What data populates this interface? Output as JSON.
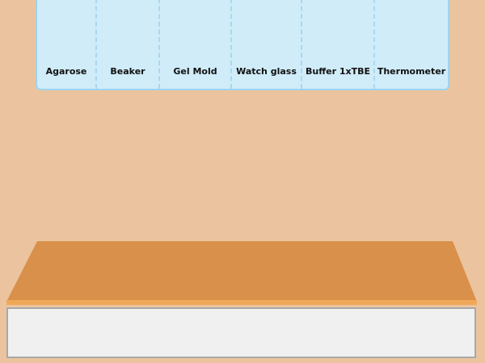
{
  "equipment_shelf": {
    "items": [
      {
        "label": "Agarose"
      },
      {
        "label": "Beaker"
      },
      {
        "label": "Gel Mold"
      },
      {
        "label": "Watch glass"
      },
      {
        "label": "Buffer 1xTBE"
      },
      {
        "label": "Thermometer"
      }
    ]
  },
  "colors": {
    "background": "#ebc49f",
    "shelf": "#d0ecf9",
    "table_top": "#d9904a",
    "table_edge": "#f0a858",
    "tray": "#f0f0f0"
  }
}
